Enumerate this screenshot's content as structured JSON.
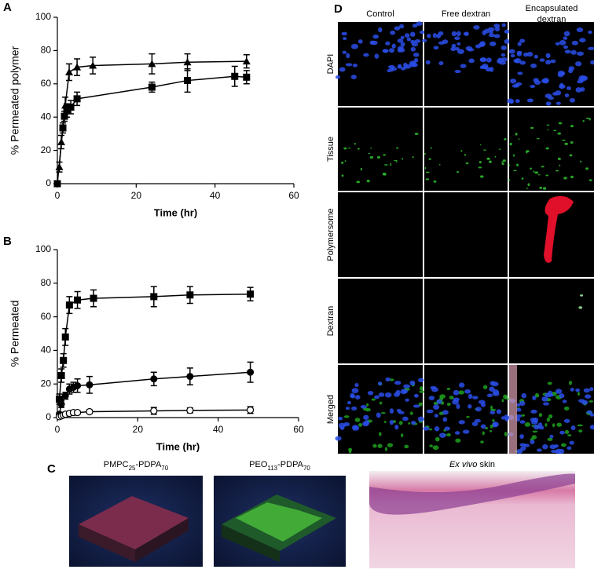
{
  "chart_data": [
    {
      "type": "line",
      "label": "A",
      "xlabel": "Time (hr)",
      "ylabel": "% Permeated polymer",
      "xlim": [
        0,
        60
      ],
      "ylim": [
        0,
        100
      ],
      "xticks": [
        0,
        20,
        40,
        60
      ],
      "yticks": [
        0,
        20,
        40,
        60,
        80,
        100
      ],
      "series": [
        {
          "marker": "triangle",
          "color": "#000000",
          "x": [
            0.5,
            1,
            2,
            3,
            5,
            9,
            24,
            33,
            48
          ],
          "values": [
            10,
            25,
            47,
            67,
            70,
            71,
            72,
            73,
            73.5
          ],
          "errors": [
            3,
            4,
            5,
            5,
            5,
            5,
            6,
            5,
            4
          ]
        },
        {
          "marker": "square",
          "color": "#000000",
          "x": [
            0,
            1.4,
            1.8,
            2.4,
            3.4,
            5,
            24,
            33,
            45,
            48
          ],
          "values": [
            0,
            33.5,
            40.5,
            44,
            46,
            51,
            58,
            62,
            64.5,
            64
          ],
          "errors": [
            0,
            3,
            3,
            4,
            4,
            4,
            3,
            7,
            6,
            4
          ]
        }
      ]
    },
    {
      "type": "line",
      "label": "B",
      "xlabel": "Time (hr)",
      "ylabel": "% Permeated",
      "xlim": [
        0,
        60
      ],
      "ylim": [
        0,
        100
      ],
      "xticks": [
        0,
        20,
        40,
        60
      ],
      "yticks": [
        0,
        20,
        40,
        60,
        80,
        100
      ],
      "series": [
        {
          "marker": "square",
          "color": "#000000",
          "x": [
            0.5,
            1,
            1.5,
            2,
            3,
            5,
            9,
            24,
            33,
            48
          ],
          "values": [
            11,
            25,
            34,
            48,
            67,
            70,
            71,
            72,
            73,
            73.5
          ],
          "errors": [
            3,
            4,
            4,
            5,
            5,
            5,
            5,
            6,
            5,
            4
          ]
        },
        {
          "marker": "circle",
          "color": "#000000",
          "x": [
            0.5,
            1,
            2,
            3,
            4,
            5,
            8,
            24,
            33,
            48
          ],
          "values": [
            2,
            8,
            13,
            17,
            18,
            19,
            19.5,
            23,
            24.5,
            27
          ],
          "errors": [
            1,
            2,
            2,
            3,
            3,
            4,
            5,
            4,
            5,
            6
          ]
        },
        {
          "marker": "open-circle",
          "color": "#000000",
          "x": [
            0.5,
            1,
            1.5,
            2,
            3,
            4,
            5,
            8,
            24,
            33,
            48
          ],
          "values": [
            0.5,
            1,
            1.5,
            2,
            2.5,
            3,
            3,
            3.5,
            4,
            4.3,
            4.5
          ],
          "errors": [
            0.5,
            0.5,
            0.5,
            1,
            1,
            1,
            1,
            1,
            2,
            1.5,
            2
          ]
        }
      ]
    }
  ],
  "panel_c": {
    "label": "C",
    "images": [
      {
        "caption": [
          {
            "text": "PMPC"
          },
          {
            "text": "25",
            "sub": true
          },
          {
            "text": "-PDPA"
          },
          {
            "text": "70",
            "sub": true
          }
        ]
      },
      {
        "caption": [
          {
            "text": "PEO"
          },
          {
            "text": "113",
            "sub": true
          },
          {
            "text": "-PDPA"
          },
          {
            "text": "70",
            "sub": true
          }
        ]
      },
      {
        "caption": [
          {
            "text": "Ex vivo",
            "italic": true
          },
          {
            "text": " skin"
          }
        ]
      }
    ]
  },
  "panel_d": {
    "label": "D",
    "columns": [
      "Control",
      "Free dextran",
      "Encapsulated dextran"
    ],
    "rows": [
      "DAPI",
      "Tissue",
      "Polymersome",
      "Dextran",
      "Merged"
    ]
  }
}
